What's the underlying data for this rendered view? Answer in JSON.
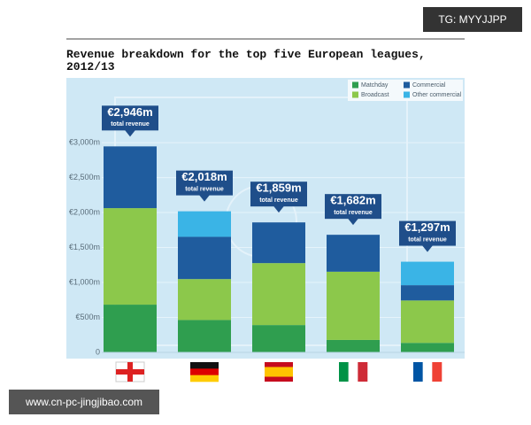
{
  "chart_data": {
    "type": "stacked-bar",
    "title": "Revenue breakdown for the top five European leagues, 2012/13",
    "categories": [
      null,
      null,
      null,
      null,
      null
    ],
    "series": [
      {
        "name": "Matchday",
        "color": "#2f9e4f",
        "values": [
          683,
          463,
          391,
          178,
          136
        ]
      },
      {
        "name": "Broadcast",
        "color": "#8cc84b",
        "values": [
          1380,
          586,
          886,
          976,
          607
        ]
      },
      {
        "name": "Commercial",
        "color": "#1f5c9e",
        "values": [
          883,
          604,
          582,
          528,
          218
        ]
      },
      {
        "name": "Other commercial",
        "color": "#3ab4e6",
        "values": [
          null,
          365,
          null,
          null,
          336
        ]
      }
    ],
    "totals": {
      "caption": "total revenue",
      "values": [
        2946,
        2018,
        1859,
        1682,
        1297
      ],
      "value_labels": [
        "€2,946m",
        "€2,018m",
        "€1,859m",
        "€1,682m",
        "€1,297m"
      ]
    },
    "ylim": [
      0,
      3900
    ],
    "yticks": [
      0,
      {
        "value": 500,
        "label": "€500m"
      },
      {
        "value": 1000,
        "label": "€1,000m"
      },
      {
        "value": 1500,
        "label": "€1,500m"
      },
      {
        "value": 2000,
        "label": "€2,000m"
      },
      {
        "value": 2500,
        "label": "€2,500m"
      },
      {
        "value": 3000,
        "label": "€3,000m"
      }
    ],
    "grid": true,
    "legend": "top-right"
  },
  "watermarks": [
    "TG: MYYJJPP",
    "www.cn-pc-jingjibao.com"
  ]
}
